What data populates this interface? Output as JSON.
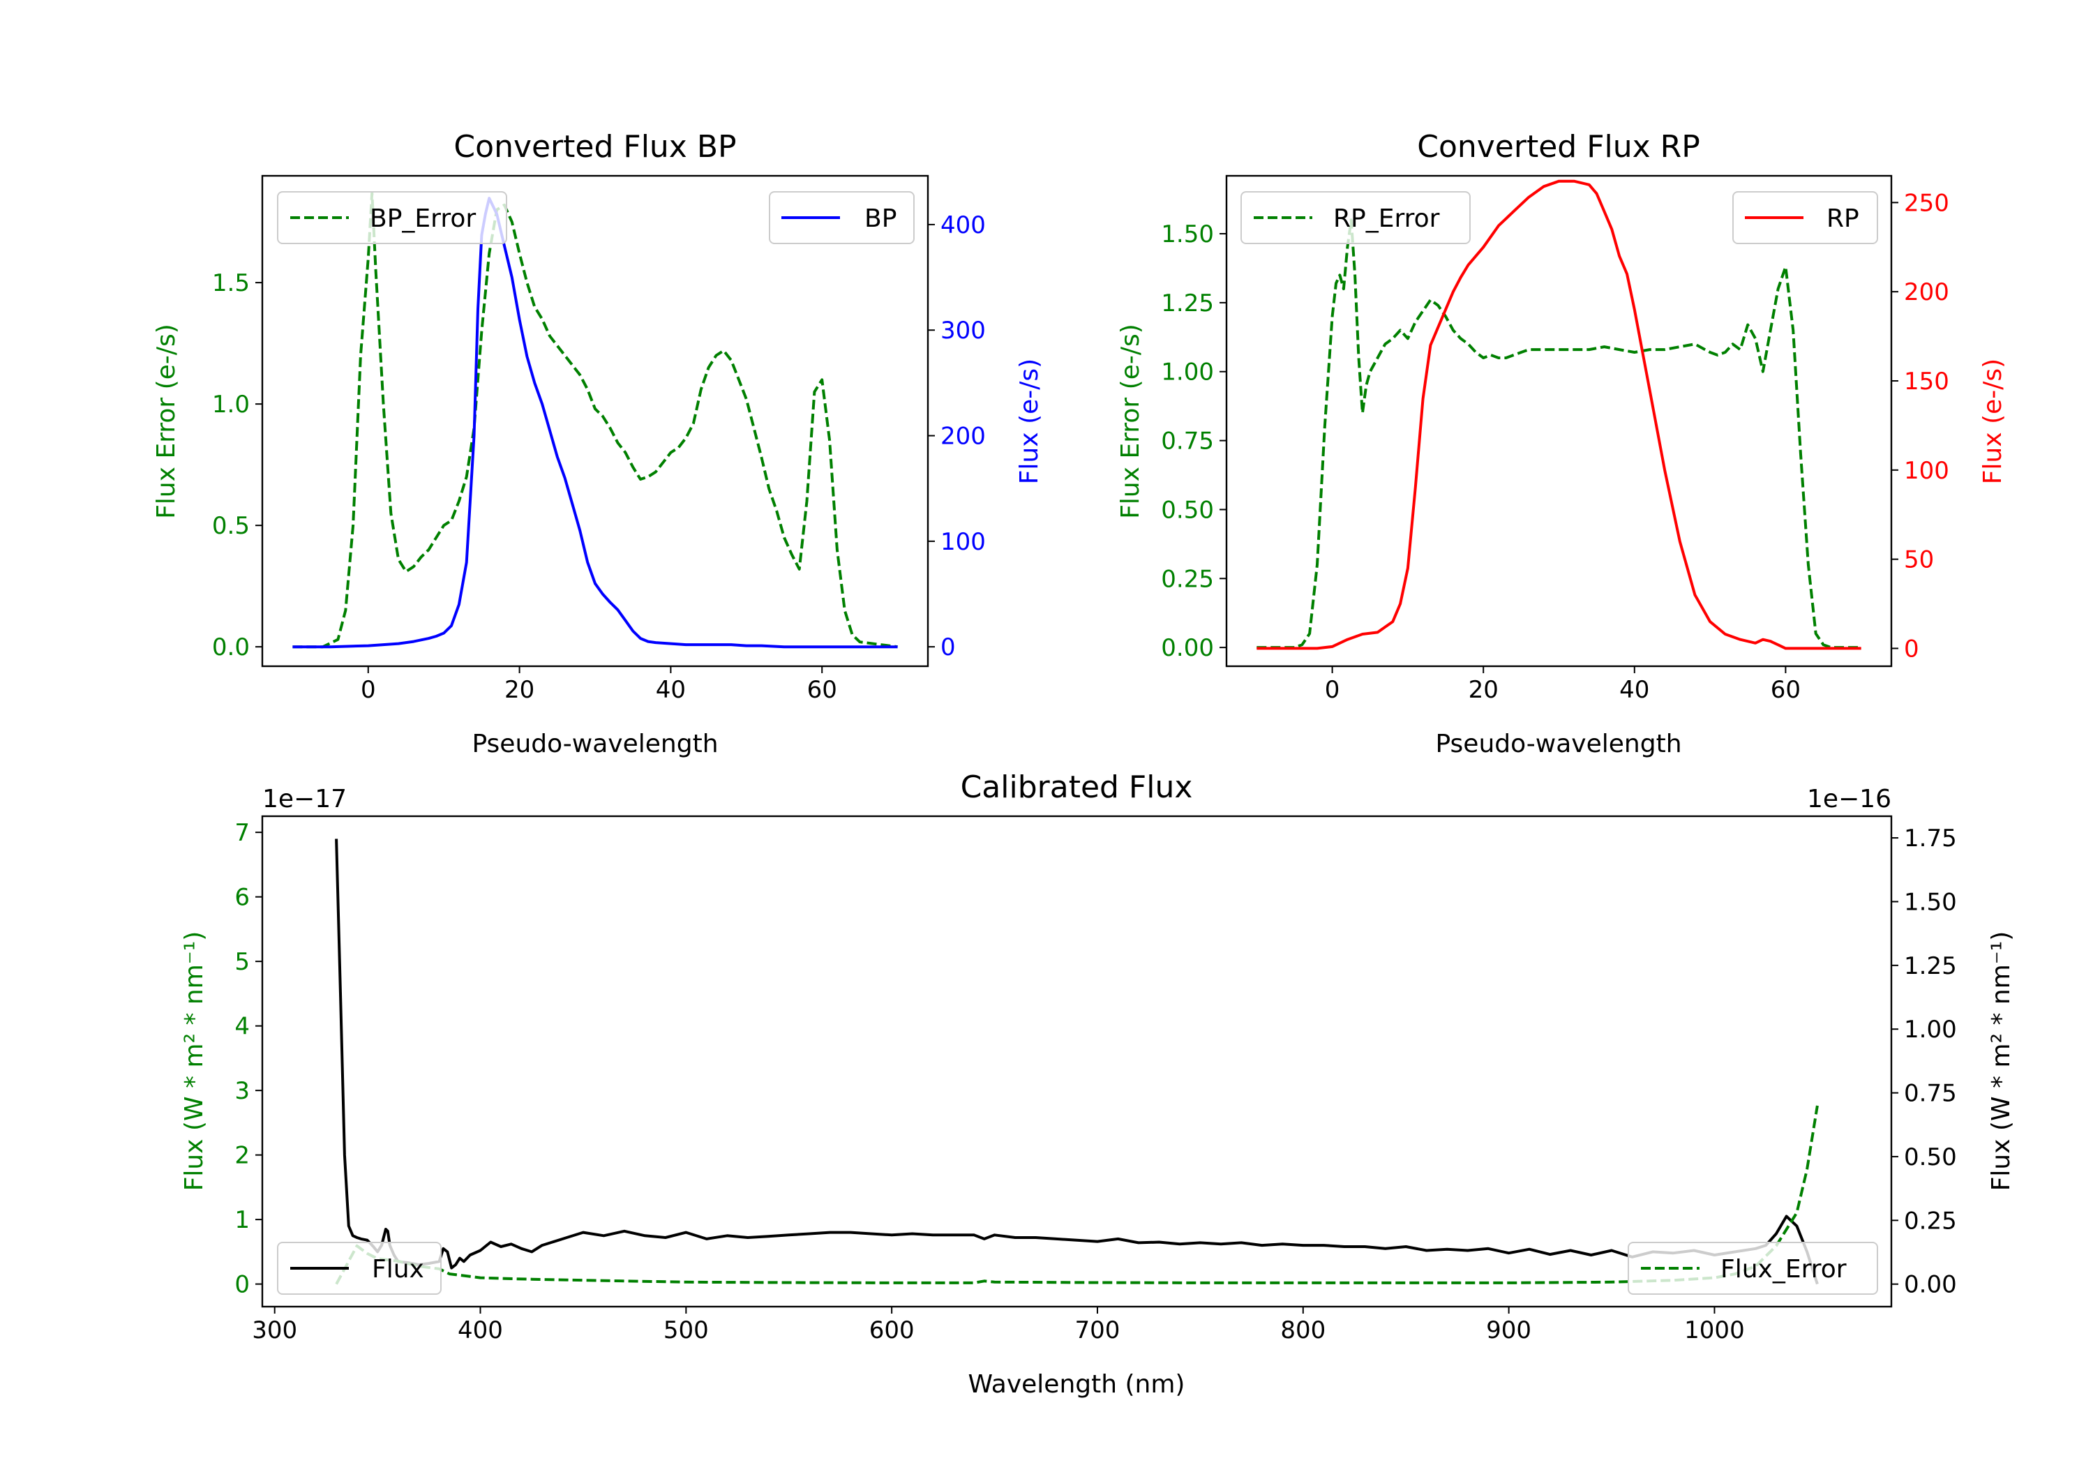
{
  "colors": {
    "bp": "#0000ff",
    "rp": "#ff0000",
    "error": "#008000",
    "flux": "#000000",
    "axis": "#000000",
    "legend_border": "#cccccc"
  },
  "chart_data": [
    {
      "id": "bp",
      "type": "line",
      "title": "Converted Flux BP",
      "xlabel": "Pseudo-wavelength",
      "ylabel_left": "Flux Error (e-/s)",
      "ylabel_right": "Flux (e-/s)",
      "xlim": [
        -14,
        74
      ],
      "ylim_left": [
        -0.08,
        1.94
      ],
      "ylim_right": [
        -18.4,
        446.2
      ],
      "xticks": [
        0,
        20,
        40,
        60
      ],
      "yticks_left": [
        0.0,
        0.5,
        1.0,
        1.5
      ],
      "yticks_left_labels": [
        "0.0",
        "0.5",
        "1.0",
        "1.5"
      ],
      "yticks_right": [
        0,
        100,
        200,
        300,
        400
      ],
      "yticks_right_labels": [
        "0",
        "100",
        "200",
        "300",
        "400"
      ],
      "legend_left": {
        "label": "BP_Error",
        "position": "upper left"
      },
      "legend_right": {
        "label": "BP",
        "position": "upper right"
      },
      "series": [
        {
          "name": "BP_Error",
          "axis": "left",
          "style": "dashed",
          "color_key": "error",
          "x": [
            -10,
            -6,
            -4,
            -3,
            -2,
            -1,
            0,
            0.5,
            1,
            2,
            3,
            4,
            5,
            6,
            7,
            8,
            9,
            10,
            11,
            12,
            13,
            14,
            15,
            16,
            17,
            18,
            19,
            20,
            21,
            22,
            23,
            24,
            25,
            26,
            27,
            28,
            29,
            30,
            31,
            32,
            33,
            34,
            35,
            36,
            37,
            38,
            39,
            40,
            41,
            42,
            43,
            44,
            45,
            46,
            47,
            48,
            49,
            50,
            51,
            52,
            53,
            54,
            55,
            56,
            57,
            58,
            59,
            60,
            61,
            62,
            63,
            64,
            65,
            70
          ],
          "values": [
            0,
            0,
            0.03,
            0.15,
            0.5,
            1.2,
            1.6,
            1.87,
            1.55,
            1.0,
            0.55,
            0.36,
            0.31,
            0.33,
            0.37,
            0.4,
            0.45,
            0.5,
            0.52,
            0.6,
            0.7,
            0.9,
            1.3,
            1.62,
            1.8,
            1.82,
            1.75,
            1.62,
            1.5,
            1.4,
            1.35,
            1.28,
            1.24,
            1.2,
            1.16,
            1.12,
            1.06,
            0.98,
            0.95,
            0.9,
            0.84,
            0.8,
            0.74,
            0.69,
            0.7,
            0.72,
            0.76,
            0.8,
            0.82,
            0.86,
            0.92,
            1.06,
            1.15,
            1.2,
            1.22,
            1.18,
            1.1,
            1.02,
            0.9,
            0.78,
            0.65,
            0.56,
            0.45,
            0.38,
            0.32,
            0.6,
            1.05,
            1.1,
            0.85,
            0.4,
            0.15,
            0.05,
            0.02,
            0
          ]
        },
        {
          "name": "BP",
          "axis": "right",
          "style": "solid",
          "color_key": "bp",
          "x": [
            -10,
            -5,
            0,
            2,
            4,
            6,
            8,
            9,
            10,
            11,
            12,
            13,
            14,
            14.5,
            15,
            15.5,
            16,
            17,
            18,
            19,
            20,
            21,
            22,
            23,
            24,
            25,
            26,
            27,
            28,
            29,
            30,
            31,
            32,
            33,
            34,
            35,
            36,
            37,
            38,
            40,
            42,
            44,
            46,
            48,
            50,
            52,
            55,
            60,
            65,
            70
          ],
          "values": [
            0,
            0,
            1,
            2,
            3,
            5,
            8,
            10,
            13,
            20,
            40,
            80,
            200,
            320,
            390,
            410,
            425,
            410,
            380,
            350,
            310,
            275,
            250,
            230,
            205,
            180,
            160,
            135,
            110,
            80,
            60,
            50,
            42,
            35,
            25,
            15,
            8,
            5,
            4,
            3,
            2,
            2,
            2,
            2,
            1,
            1,
            0,
            0,
            0,
            0
          ]
        }
      ]
    },
    {
      "id": "rp",
      "type": "line",
      "title": "Converted Flux RP",
      "xlabel": "Pseudo-wavelength",
      "ylabel_left": "Flux Error (e-/s)",
      "ylabel_right": "Flux (e-/s)",
      "xlim": [
        -14,
        74
      ],
      "ylim_left": [
        -0.068,
        1.71
      ],
      "ylim_right": [
        -10.0,
        265.0
      ],
      "xticks": [
        0,
        20,
        40,
        60
      ],
      "yticks_left": [
        0.0,
        0.25,
        0.5,
        0.75,
        1.0,
        1.25,
        1.5
      ],
      "yticks_left_labels": [
        "0.00",
        "0.25",
        "0.50",
        "0.75",
        "1.00",
        "1.25",
        "1.50"
      ],
      "yticks_right": [
        0,
        50,
        100,
        150,
        200,
        250
      ],
      "yticks_right_labels": [
        "0",
        "50",
        "100",
        "150",
        "200",
        "250"
      ],
      "legend_left": {
        "label": "RP_Error",
        "position": "upper left"
      },
      "legend_right": {
        "label": "RP",
        "position": "upper right"
      },
      "series": [
        {
          "name": "RP_Error",
          "axis": "left",
          "style": "dashed",
          "color_key": "error",
          "x": [
            -10,
            -5,
            -4,
            -3,
            -2,
            -1,
            0,
            0.5,
            1,
            1.5,
            2,
            2.5,
            3,
            3.5,
            4,
            4.5,
            5,
            6,
            7,
            8,
            9,
            10,
            11,
            12,
            13,
            14,
            15,
            16,
            17,
            18,
            19,
            20,
            21,
            22,
            23,
            24,
            25,
            26,
            28,
            30,
            32,
            34,
            36,
            38,
            40,
            42,
            44,
            46,
            48,
            50,
            51,
            52,
            53,
            54,
            55,
            56,
            57,
            58,
            59,
            60,
            61,
            62,
            63,
            64,
            65,
            66,
            70
          ],
          "values": [
            0,
            0,
            0.01,
            0.05,
            0.3,
            0.8,
            1.2,
            1.32,
            1.35,
            1.3,
            1.45,
            1.55,
            1.35,
            1.05,
            0.85,
            0.95,
            1.0,
            1.05,
            1.1,
            1.12,
            1.15,
            1.12,
            1.18,
            1.22,
            1.26,
            1.24,
            1.2,
            1.15,
            1.12,
            1.1,
            1.07,
            1.05,
            1.06,
            1.05,
            1.05,
            1.06,
            1.07,
            1.08,
            1.08,
            1.08,
            1.08,
            1.08,
            1.09,
            1.08,
            1.07,
            1.08,
            1.08,
            1.09,
            1.1,
            1.07,
            1.06,
            1.07,
            1.1,
            1.08,
            1.17,
            1.12,
            1.0,
            1.15,
            1.3,
            1.38,
            1.15,
            0.7,
            0.3,
            0.05,
            0.01,
            0,
            0
          ]
        },
        {
          "name": "RP",
          "axis": "right",
          "style": "solid",
          "color_key": "rp",
          "x": [
            -10,
            -2,
            0,
            2,
            4,
            6,
            7,
            8,
            9,
            10,
            11,
            12,
            13,
            14,
            15,
            16,
            17,
            18,
            20,
            22,
            24,
            26,
            28,
            30,
            32,
            34,
            35,
            36,
            37,
            38,
            39,
            40,
            42,
            44,
            46,
            48,
            50,
            52,
            54,
            56,
            57,
            58,
            59,
            60,
            61,
            62,
            64,
            66,
            70
          ],
          "values": [
            0,
            0,
            1,
            5,
            8,
            9,
            12,
            15,
            25,
            45,
            90,
            140,
            170,
            180,
            190,
            200,
            208,
            215,
            225,
            237,
            245,
            253,
            259,
            262,
            262,
            260,
            255,
            245,
            235,
            220,
            210,
            190,
            145,
            100,
            60,
            30,
            15,
            8,
            5,
            3,
            5,
            4,
            2,
            0,
            0,
            0,
            0,
            0,
            0
          ]
        }
      ]
    },
    {
      "id": "calibrated",
      "type": "line",
      "title": "Calibrated Flux",
      "xlabel": "Wavelength (nm)",
      "ylabel_left": "Flux (W * m² * nm⁻¹)",
      "ylabel_right": "Flux (W * m² * nm⁻¹)",
      "offset_left": "1e−17",
      "offset_right": "1e−16",
      "xlim": [
        294,
        1086
      ],
      "ylim_left": [
        -0.35,
        7.25
      ],
      "ylim_right": [
        -0.08834,
        1.835
      ],
      "xticks": [
        300,
        400,
        500,
        600,
        700,
        800,
        900,
        1000
      ],
      "yticks_left": [
        0,
        1,
        2,
        3,
        4,
        5,
        6,
        7
      ],
      "yticks_left_labels": [
        "0",
        "1",
        "2",
        "3",
        "4",
        "5",
        "6",
        "7"
      ],
      "yticks_right": [
        0.0,
        0.25,
        0.5,
        0.75,
        1.0,
        1.25,
        1.5,
        1.75
      ],
      "yticks_right_labels": [
        "0.00",
        "0.25",
        "0.50",
        "0.75",
        "1.00",
        "1.25",
        "1.50",
        "1.75"
      ],
      "legend_left": {
        "label": "Flux",
        "position": "lower left"
      },
      "legend_right": {
        "label": "Flux_Error",
        "position": "lower right"
      },
      "series": [
        {
          "name": "Flux",
          "axis": "left",
          "style": "solid",
          "color_key": "flux",
          "x": [
            330,
            332,
            334,
            336,
            338,
            340,
            342,
            345,
            348,
            350,
            352,
            354,
            355,
            356,
            358,
            360,
            365,
            370,
            375,
            380,
            382,
            384,
            386,
            388,
            390,
            392,
            395,
            400,
            405,
            410,
            415,
            420,
            425,
            430,
            440,
            450,
            460,
            470,
            480,
            490,
            500,
            510,
            520,
            530,
            540,
            550,
            560,
            570,
            580,
            590,
            600,
            610,
            620,
            630,
            640,
            645,
            650,
            660,
            670,
            680,
            690,
            700,
            710,
            720,
            730,
            740,
            750,
            760,
            770,
            780,
            790,
            800,
            810,
            820,
            830,
            840,
            850,
            860,
            870,
            880,
            890,
            900,
            910,
            920,
            930,
            940,
            950,
            960,
            970,
            980,
            990,
            1000,
            1010,
            1020,
            1025,
            1030,
            1035,
            1040,
            1045,
            1050
          ],
          "values": [
            6.9,
            4.5,
            2.0,
            0.9,
            0.75,
            0.72,
            0.7,
            0.68,
            0.58,
            0.5,
            0.6,
            0.85,
            0.82,
            0.6,
            0.45,
            0.35,
            0.33,
            0.3,
            0.32,
            0.35,
            0.55,
            0.5,
            0.25,
            0.3,
            0.4,
            0.35,
            0.45,
            0.52,
            0.65,
            0.58,
            0.62,
            0.55,
            0.5,
            0.6,
            0.7,
            0.8,
            0.75,
            0.82,
            0.75,
            0.72,
            0.8,
            0.7,
            0.75,
            0.72,
            0.74,
            0.76,
            0.78,
            0.8,
            0.8,
            0.78,
            0.76,
            0.78,
            0.76,
            0.76,
            0.76,
            0.7,
            0.76,
            0.72,
            0.72,
            0.7,
            0.68,
            0.66,
            0.7,
            0.64,
            0.65,
            0.62,
            0.64,
            0.62,
            0.64,
            0.6,
            0.62,
            0.6,
            0.6,
            0.58,
            0.58,
            0.55,
            0.58,
            0.52,
            0.54,
            0.52,
            0.55,
            0.48,
            0.54,
            0.46,
            0.52,
            0.45,
            0.52,
            0.42,
            0.5,
            0.48,
            0.52,
            0.45,
            0.5,
            0.55,
            0.6,
            0.78,
            1.05,
            0.9,
            0.5,
            0.0
          ]
        },
        {
          "name": "Flux_Error",
          "axis": "right",
          "style": "dashed",
          "color_key": "error",
          "x": [
            330,
            340,
            345,
            350,
            360,
            370,
            380,
            385,
            390,
            400,
            420,
            450,
            500,
            550,
            600,
            640,
            645,
            650,
            700,
            750,
            800,
            850,
            900,
            950,
            980,
            1000,
            1010,
            1020,
            1030,
            1040,
            1045,
            1050
          ],
          "values": [
            0.0,
            0.15,
            0.12,
            0.1,
            0.09,
            0.07,
            0.06,
            0.04,
            0.035,
            0.025,
            0.02,
            0.015,
            0.008,
            0.006,
            0.005,
            0.005,
            0.012,
            0.008,
            0.006,
            0.005,
            0.005,
            0.005,
            0.005,
            0.008,
            0.015,
            0.025,
            0.04,
            0.07,
            0.15,
            0.28,
            0.45,
            0.7
          ]
        }
      ]
    }
  ]
}
